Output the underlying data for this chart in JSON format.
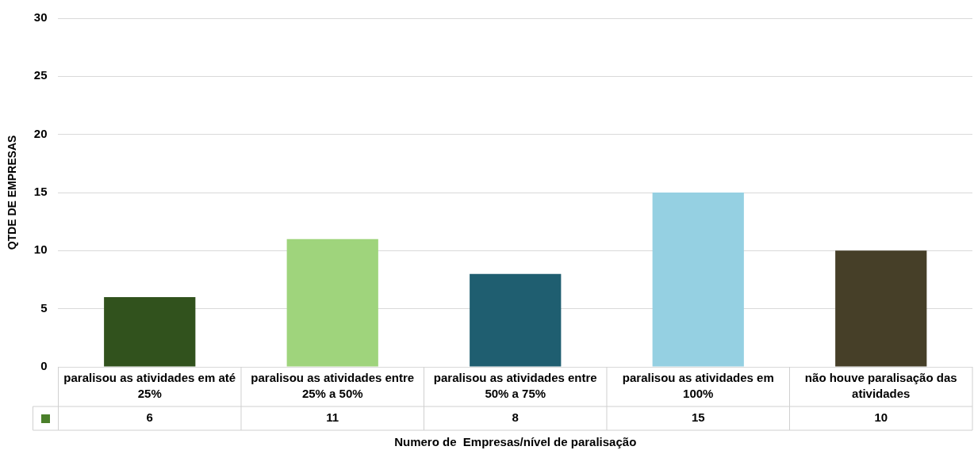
{
  "chart_data": {
    "type": "bar",
    "xlabel": "Numero de  Empresas/nível de paralisação",
    "ylabel": "QTDE DE EMPRESAS",
    "categories": [
      "paralisou as atividades em até 25%",
      "paralisou as atividades entre 25% a 50%",
      "paralisou as atividades entre 50% a 75%",
      "paralisou as atividades em 100%",
      "não houve paralisação das atividades"
    ],
    "values": [
      6,
      11,
      8,
      15,
      10
    ],
    "colors": [
      "#31521d",
      "#9fd47c",
      "#1f5e70",
      "#95d0e2",
      "#463f28"
    ],
    "ylim": [
      0,
      30
    ],
    "yticks": [
      0,
      5,
      10,
      15,
      20,
      25,
      30
    ],
    "grid": "y",
    "data_labels": true,
    "legend": false
  }
}
